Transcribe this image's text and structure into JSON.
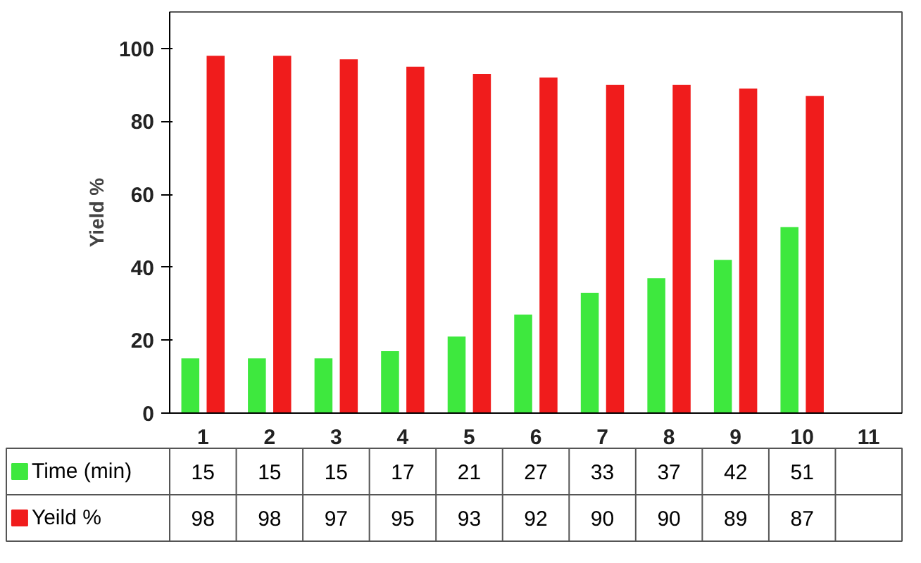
{
  "chart_data": {
    "type": "bar",
    "ylabel": "Yield %",
    "categories": [
      "1",
      "2",
      "3",
      "4",
      "5",
      "6",
      "7",
      "8",
      "9",
      "10",
      "11"
    ],
    "series": [
      {
        "name": "Time (min)",
        "color": "#3ee83e",
        "values": [
          15,
          15,
          15,
          17,
          21,
          27,
          33,
          37,
          42,
          51,
          null
        ]
      },
      {
        "name": "Yeild %",
        "color": "#f01c1c",
        "values": [
          98,
          98,
          97,
          95,
          93,
          92,
          90,
          90,
          89,
          87,
          null
        ]
      }
    ],
    "ylim": [
      0,
      110
    ],
    "yticks": [
      0,
      20,
      40,
      60,
      80,
      100
    ],
    "grid": false,
    "legend": "bottom",
    "data_labels": true
  }
}
